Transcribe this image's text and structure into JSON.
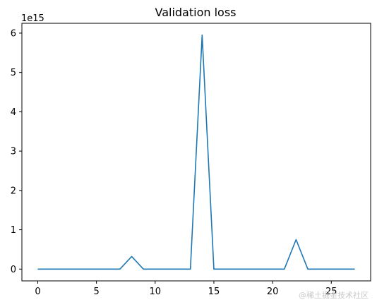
{
  "chart_data": {
    "type": "line",
    "title": "Validation loss",
    "xlabel": "",
    "ylabel": "",
    "y_offset_label": "1e15",
    "xlim": [
      -1.35,
      28.35
    ],
    "ylim": [
      -0.3,
      6.25
    ],
    "x_ticks": [
      0,
      5,
      10,
      15,
      20,
      25
    ],
    "y_ticks": [
      0,
      1,
      2,
      3,
      4,
      5,
      6
    ],
    "grid": false,
    "legend": "none",
    "series": [
      {
        "color": "#1f77b4",
        "x": [
          0,
          1,
          2,
          3,
          4,
          5,
          6,
          7,
          8,
          9,
          10,
          11,
          12,
          13,
          14,
          15,
          16,
          17,
          18,
          19,
          20,
          21,
          22,
          23,
          24,
          25,
          26,
          27
        ],
        "values": [
          0,
          0,
          0,
          0,
          0,
          0,
          0,
          0,
          0.32,
          0,
          0,
          0,
          0,
          0,
          5.95,
          0,
          0,
          0,
          0,
          0,
          0,
          0,
          0.75,
          0,
          0,
          0,
          0,
          0
        ]
      }
    ]
  },
  "watermark": "@稀土掘金技术社区"
}
